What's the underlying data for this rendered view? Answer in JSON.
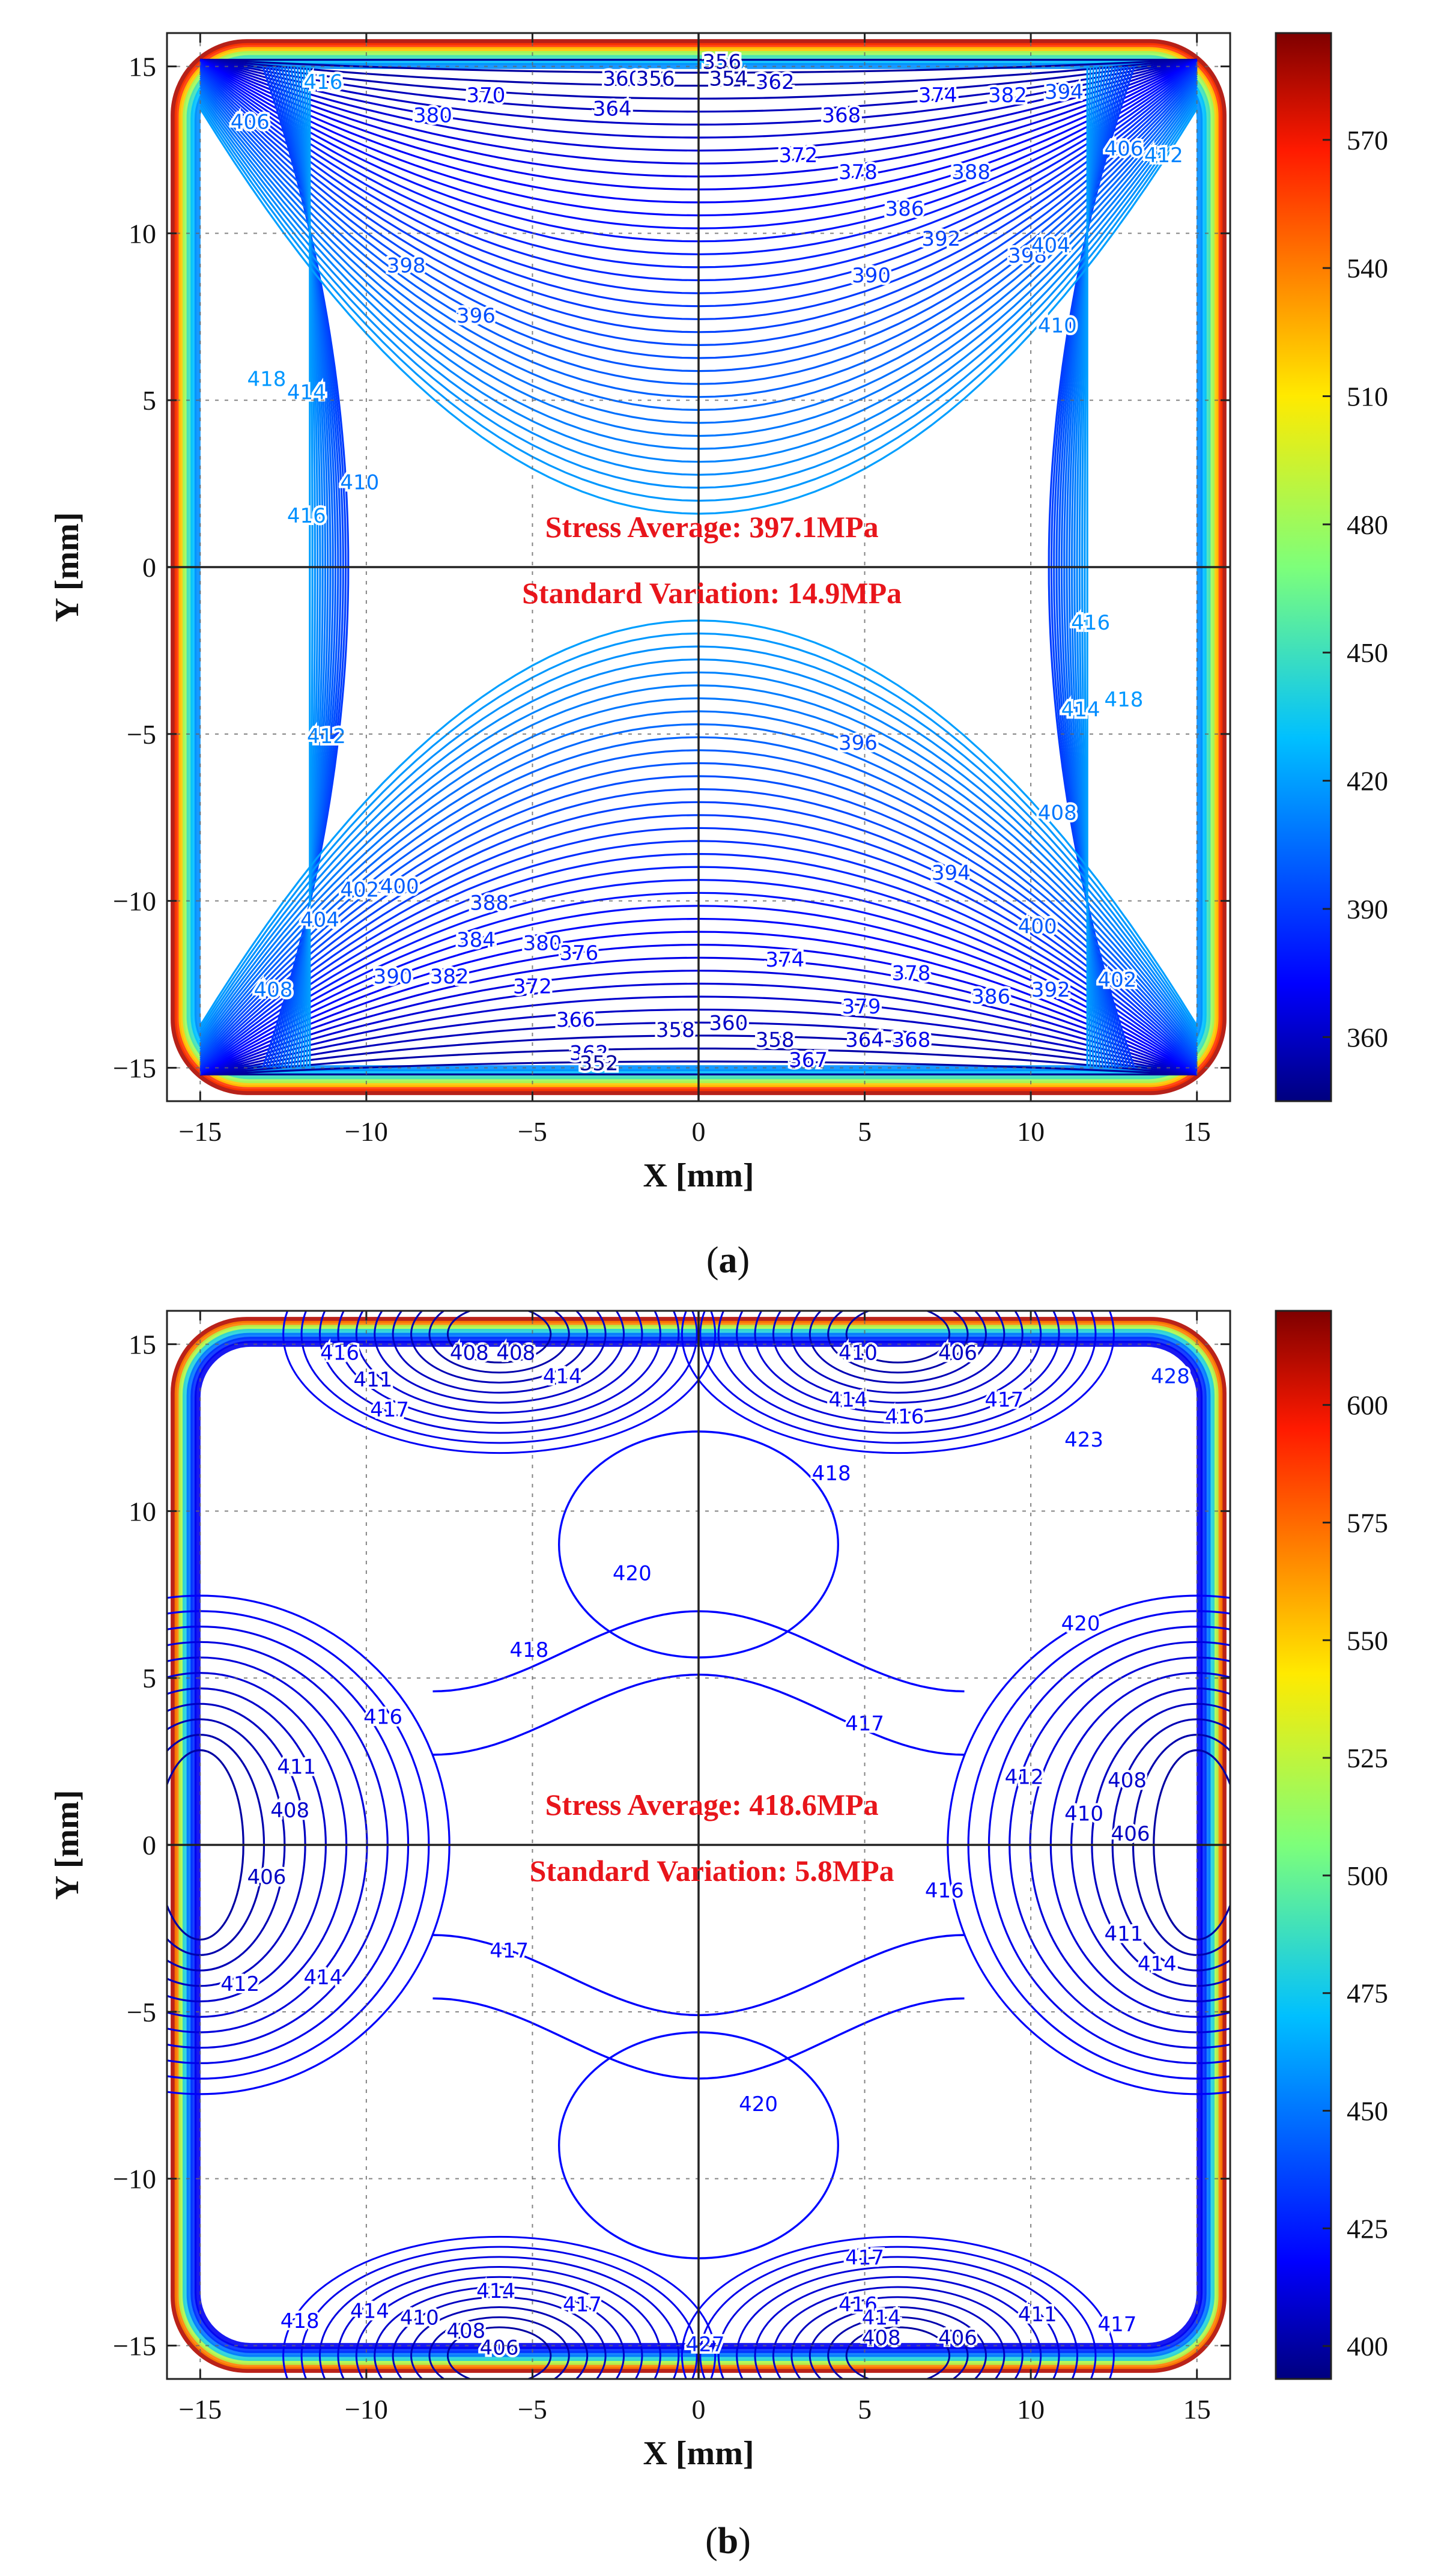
{
  "chart_data": [
    {
      "panel_label": "(a)",
      "panel_letter": "a",
      "type": "heatmap",
      "xlabel": "X [mm]",
      "ylabel": "Y [mm]",
      "xlim": [
        -16,
        16
      ],
      "ylim": [
        -16,
        16
      ],
      "x_ticks": [
        -15,
        -10,
        -5,
        0,
        5,
        10,
        15
      ],
      "y_ticks": [
        -15,
        -10,
        -5,
        0,
        5,
        10,
        15
      ],
      "tick_labels_x": [
        "−15",
        "−10",
        "−5",
        "0",
        "5",
        "10",
        "15"
      ],
      "tick_labels_y": [
        "−15",
        "−10",
        "−5",
        "0",
        "5",
        "10",
        "15"
      ],
      "grid": true,
      "colorbar": {
        "min": 345,
        "max": 595,
        "ticks": [
          360,
          390,
          420,
          450,
          480,
          510,
          540,
          570
        ]
      },
      "contour_min": 350,
      "contour_max": 420,
      "contour_step": 2,
      "annotations": [
        "Stress Average: 397.1MPa",
        "Standard Variation: 14.9MPa"
      ],
      "stress_average_mpa": 397.1,
      "standard_variation_mpa": 14.9,
      "contour_labels": [
        {
          "text": "356",
          "x": 0.7,
          "y": 15.1
        },
        {
          "text": "360",
          "x": -2.3,
          "y": 14.6
        },
        {
          "text": "354",
          "x": 0.9,
          "y": 14.6
        },
        {
          "text": "356",
          "x": -1.3,
          "y": 14.6
        },
        {
          "text": "362",
          "x": 2.3,
          "y": 14.5
        },
        {
          "text": "364",
          "x": -2.6,
          "y": 13.7
        },
        {
          "text": "368",
          "x": 4.3,
          "y": 13.5
        },
        {
          "text": "370",
          "x": -6.4,
          "y": 14.1
        },
        {
          "text": "372",
          "x": 3.0,
          "y": 12.3
        },
        {
          "text": "374",
          "x": 7.2,
          "y": 14.1
        },
        {
          "text": "378",
          "x": 4.8,
          "y": 11.8
        },
        {
          "text": "382",
          "x": 9.3,
          "y": 14.1
        },
        {
          "text": "380",
          "x": -8.0,
          "y": 13.5
        },
        {
          "text": "388",
          "x": 8.2,
          "y": 11.8
        },
        {
          "text": "386",
          "x": 6.2,
          "y": 10.7
        },
        {
          "text": "390",
          "x": 5.2,
          "y": 8.7
        },
        {
          "text": "392",
          "x": 7.3,
          "y": 9.8
        },
        {
          "text": "398",
          "x": 9.9,
          "y": 9.3
        },
        {
          "text": "398",
          "x": -8.8,
          "y": 9.0
        },
        {
          "text": "396",
          "x": -6.7,
          "y": 7.5
        },
        {
          "text": "394",
          "x": 11.0,
          "y": 14.2
        },
        {
          "text": "404",
          "x": 10.6,
          "y": 9.6
        },
        {
          "text": "406",
          "x": 12.8,
          "y": 12.5
        },
        {
          "text": "412",
          "x": 14.0,
          "y": 12.3
        },
        {
          "text": "410",
          "x": 10.8,
          "y": 7.2
        },
        {
          "text": "406",
          "x": -13.5,
          "y": 13.3
        },
        {
          "text": "416",
          "x": -11.3,
          "y": 14.5
        },
        {
          "text": "418",
          "x": -13.0,
          "y": 5.6
        },
        {
          "text": "414",
          "x": -11.8,
          "y": 5.2
        },
        {
          "text": "410",
          "x": -10.2,
          "y": 2.5
        },
        {
          "text": "416",
          "x": -11.8,
          "y": 1.5
        },
        {
          "text": "416",
          "x": 11.8,
          "y": -1.7
        },
        {
          "text": "418",
          "x": 12.8,
          "y": -4.0
        },
        {
          "text": "414",
          "x": 11.5,
          "y": -4.3
        },
        {
          "text": "412",
          "x": -11.2,
          "y": -5.1
        },
        {
          "text": "396",
          "x": 4.8,
          "y": -5.3
        },
        {
          "text": "408",
          "x": 10.8,
          "y": -7.4
        },
        {
          "text": "394",
          "x": 7.6,
          "y": -9.2
        },
        {
          "text": "400",
          "x": 10.2,
          "y": -10.8
        },
        {
          "text": "402",
          "x": -10.2,
          "y": -9.7
        },
        {
          "text": "400",
          "x": -9.0,
          "y": -9.6
        },
        {
          "text": "404",
          "x": -11.4,
          "y": -10.6
        },
        {
          "text": "408",
          "x": -12.8,
          "y": -12.7
        },
        {
          "text": "390",
          "x": -9.2,
          "y": -12.3
        },
        {
          "text": "388",
          "x": -6.3,
          "y": -10.1
        },
        {
          "text": "384",
          "x": -6.7,
          "y": -11.2
        },
        {
          "text": "382",
          "x": -7.5,
          "y": -12.3
        },
        {
          "text": "380",
          "x": -4.7,
          "y": -11.3
        },
        {
          "text": "376",
          "x": -3.6,
          "y": -11.6
        },
        {
          "text": "372",
          "x": -5.0,
          "y": -12.6
        },
        {
          "text": "374",
          "x": 2.6,
          "y": -11.8
        },
        {
          "text": "378",
          "x": 6.4,
          "y": -12.2
        },
        {
          "text": "379",
          "x": 4.9,
          "y": -13.2
        },
        {
          "text": "386",
          "x": 8.8,
          "y": -12.9
        },
        {
          "text": "392",
          "x": 10.6,
          "y": -12.7
        },
        {
          "text": "402",
          "x": 12.6,
          "y": -12.4
        },
        {
          "text": "366",
          "x": -3.7,
          "y": -13.6
        },
        {
          "text": "358",
          "x": -0.7,
          "y": -13.9
        },
        {
          "text": "360",
          "x": 0.9,
          "y": -13.7
        },
        {
          "text": "358",
          "x": 2.3,
          "y": -14.2
        },
        {
          "text": "364",
          "x": 5.0,
          "y": -14.2
        },
        {
          "text": "368",
          "x": 6.4,
          "y": -14.2
        },
        {
          "text": "362",
          "x": -3.3,
          "y": -14.6
        },
        {
          "text": "352",
          "x": -3.0,
          "y": -14.9
        },
        {
          "text": "367",
          "x": 3.3,
          "y": -14.8
        }
      ]
    },
    {
      "panel_label": "(b)",
      "panel_letter": "b",
      "type": "heatmap",
      "xlabel": "X [mm]",
      "ylabel": "Y [mm]",
      "xlim": [
        -16,
        16
      ],
      "ylim": [
        -16,
        16
      ],
      "x_ticks": [
        -15,
        -10,
        -5,
        0,
        5,
        10,
        15
      ],
      "y_ticks": [
        -15,
        -10,
        -5,
        0,
        5,
        10,
        15
      ],
      "tick_labels_x": [
        "−15",
        "−10",
        "−5",
        "0",
        "5",
        "10",
        "15"
      ],
      "tick_labels_y": [
        "−15",
        "−10",
        "−5",
        "0",
        "5",
        "10",
        "15"
      ],
      "grid": true,
      "colorbar": {
        "min": 393,
        "max": 620,
        "ticks": [
          400,
          425,
          450,
          475,
          500,
          525,
          550,
          575,
          600
        ]
      },
      "contour_levels": [
        420,
        418,
        417,
        416,
        414,
        412,
        411,
        410,
        408,
        406,
        404,
        402,
        400
      ],
      "annotations": [
        "Stress Average: 418.6MPa",
        "Standard Variation: 5.8MPa"
      ],
      "stress_average_mpa": 418.6,
      "standard_variation_mpa": 5.8,
      "contour_labels": [
        {
          "text": "408",
          "x": -6.9,
          "y": 14.7
        },
        {
          "text": "408",
          "x": -5.5,
          "y": 14.7
        },
        {
          "text": "411",
          "x": -9.8,
          "y": 13.9
        },
        {
          "text": "416",
          "x": -10.8,
          "y": 14.7
        },
        {
          "text": "417",
          "x": -9.3,
          "y": 13.0
        },
        {
          "text": "414",
          "x": -4.1,
          "y": 14.0
        },
        {
          "text": "418",
          "x": 4.0,
          "y": 11.1
        },
        {
          "text": "420",
          "x": -2.0,
          "y": 8.1
        },
        {
          "text": "418",
          "x": -5.1,
          "y": 5.8
        },
        {
          "text": "416",
          "x": -9.5,
          "y": 3.8
        },
        {
          "text": "411",
          "x": -12.1,
          "y": 2.3
        },
        {
          "text": "408",
          "x": -12.3,
          "y": 1.0
        },
        {
          "text": "406",
          "x": -13.0,
          "y": -1.0
        },
        {
          "text": "414",
          "x": -11.3,
          "y": -4.0
        },
        {
          "text": "412",
          "x": -13.8,
          "y": -4.2
        },
        {
          "text": "417",
          "x": -5.7,
          "y": -3.2
        },
        {
          "text": "417",
          "x": 5.0,
          "y": 3.6
        },
        {
          "text": "412",
          "x": 9.8,
          "y": 2.0
        },
        {
          "text": "416",
          "x": 7.4,
          "y": -1.4
        },
        {
          "text": "420",
          "x": 11.5,
          "y": 6.6
        },
        {
          "text": "410",
          "x": 11.6,
          "y": 0.9
        },
        {
          "text": "408",
          "x": 12.9,
          "y": 1.9
        },
        {
          "text": "406",
          "x": 13.0,
          "y": 0.3
        },
        {
          "text": "411",
          "x": 12.8,
          "y": -2.7
        },
        {
          "text": "414",
          "x": 13.8,
          "y": -3.6
        },
        {
          "text": "410",
          "x": 4.8,
          "y": 14.7
        },
        {
          "text": "414",
          "x": 4.5,
          "y": 13.3
        },
        {
          "text": "416",
          "x": 6.2,
          "y": 12.8
        },
        {
          "text": "417",
          "x": 9.2,
          "y": 13.3
        },
        {
          "text": "406",
          "x": 7.8,
          "y": 14.7
        },
        {
          "text": "423",
          "x": 11.6,
          "y": 12.1
        },
        {
          "text": "428",
          "x": 14.2,
          "y": 14.0
        },
        {
          "text": "420",
          "x": 1.8,
          "y": -7.8
        },
        {
          "text": "417",
          "x": 5.0,
          "y": -12.4
        },
        {
          "text": "414",
          "x": -6.1,
          "y": -13.4
        },
        {
          "text": "417",
          "x": -3.5,
          "y": -13.8
        },
        {
          "text": "416",
          "x": 4.8,
          "y": -13.8
        },
        {
          "text": "414",
          "x": 5.5,
          "y": -14.2
        },
        {
          "text": "408",
          "x": 5.5,
          "y": -14.8
        },
        {
          "text": "406",
          "x": 7.8,
          "y": -14.8
        },
        {
          "text": "411",
          "x": 10.2,
          "y": -14.1
        },
        {
          "text": "417",
          "x": 12.6,
          "y": -14.4
        },
        {
          "text": "410",
          "x": -8.4,
          "y": -14.2
        },
        {
          "text": "408",
          "x": -7.0,
          "y": -14.6
        },
        {
          "text": "414",
          "x": -9.9,
          "y": -14.0
        },
        {
          "text": "418",
          "x": -12.0,
          "y": -14.3
        },
        {
          "text": "406",
          "x": -6.0,
          "y": -15.1
        },
        {
          "text": "427",
          "x": 0.2,
          "y": -15.0
        }
      ]
    }
  ]
}
